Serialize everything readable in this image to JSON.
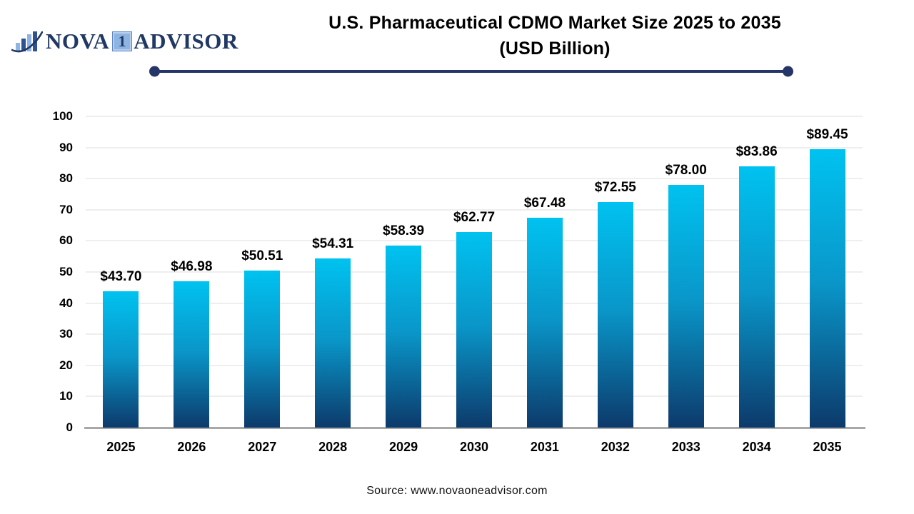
{
  "logo": {
    "icon": "bar-chart-swoosh-icon",
    "brand_part1": "NOVA",
    "brand_badge": "1",
    "brand_part2": "ADVISOR"
  },
  "header": {
    "title_line1": "U.S. Pharmaceutical CDMO Market Size 2025 to 2035",
    "title_line2": "(USD Billion)"
  },
  "footer": {
    "source": "Source: www.novaoneadvisor.com"
  },
  "colors": {
    "navy": "#1f3864",
    "divider": "#263568",
    "logo_light_blue": "#8db4e2",
    "bar_gradient_top": "#00c2f0",
    "bar_gradient_mid": "#0a96c9",
    "bar_gradient_bottom": "#0c3a6b",
    "gridline": "#eeeeee",
    "baseline": "#a8a8a8",
    "text": "#000000"
  },
  "chart_data": {
    "type": "bar",
    "title": "U.S. Pharmaceutical CDMO Market Size 2025 to 2035 (USD Billion)",
    "categories": [
      "2025",
      "2026",
      "2027",
      "2028",
      "2029",
      "2030",
      "2031",
      "2032",
      "2033",
      "2034",
      "2035"
    ],
    "values": [
      43.7,
      46.98,
      50.51,
      54.31,
      58.39,
      62.77,
      67.48,
      72.55,
      78.0,
      83.86,
      89.45
    ],
    "value_labels": [
      "$43.70",
      "$46.98",
      "$50.51",
      "$54.31",
      "$58.39",
      "$62.77",
      "$67.48",
      "$72.55",
      "$78.00",
      "$83.86",
      "$89.45"
    ],
    "xlabel": "",
    "ylabel": "",
    "ylim": [
      0,
      100
    ],
    "y_ticks": [
      0,
      10,
      20,
      30,
      40,
      50,
      60,
      70,
      80,
      90,
      100
    ],
    "grid": "horizontal-only",
    "legend": "none",
    "bar_orientation": "vertical"
  }
}
